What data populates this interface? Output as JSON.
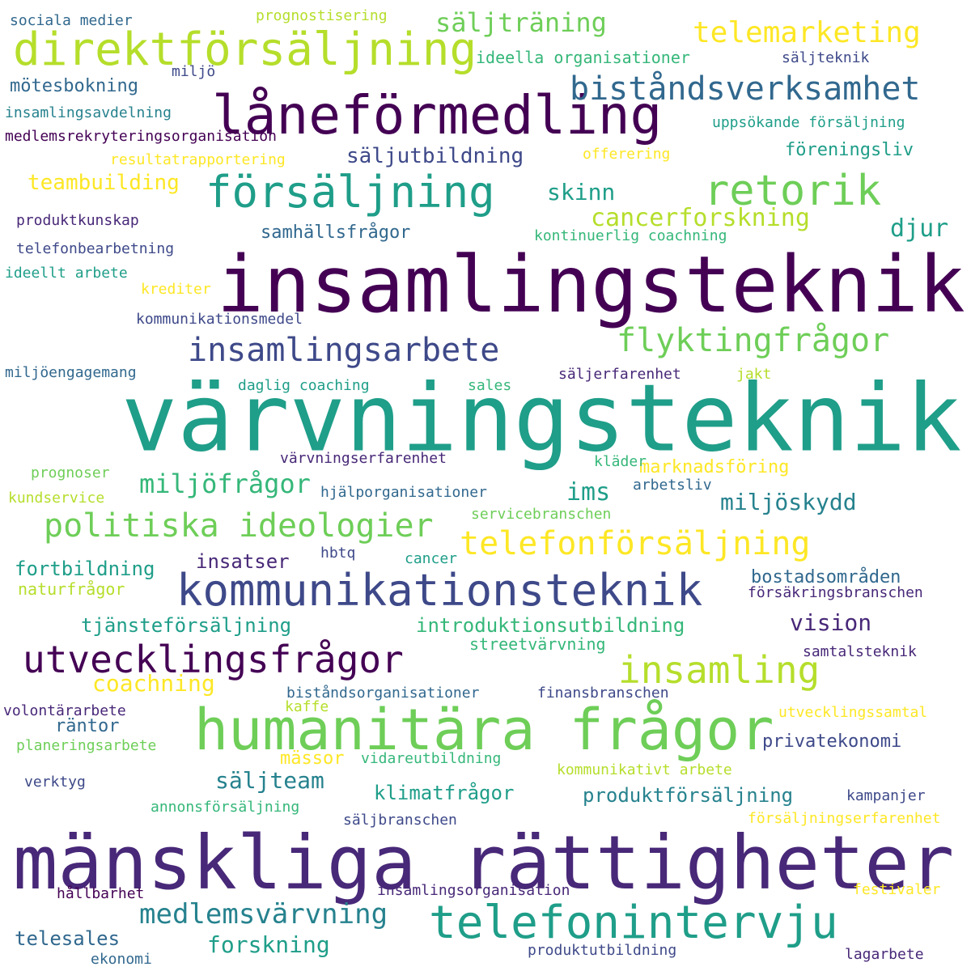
{
  "palette": {
    "c1": "#440154",
    "c2": "#482878",
    "c3": "#3e4989",
    "c4": "#31688e",
    "c5": "#26828e",
    "c6": "#1f9e89",
    "c7": "#35b779",
    "c8": "#6ece58",
    "c9": "#b5de2b",
    "c10": "#fde725"
  },
  "words": [
    {
      "text": "värvningsteknik",
      "color": "c6"
    },
    {
      "text": "insamlingsteknik",
      "color": "c1"
    },
    {
      "text": "mänskliga rättigheter",
      "color": "c2"
    },
    {
      "text": "humanitära frågor",
      "color": "c8"
    },
    {
      "text": "låneförmedling",
      "color": "c1"
    },
    {
      "text": "direktförsäljning",
      "color": "c9"
    },
    {
      "text": "telefonintervju",
      "color": "c6"
    },
    {
      "text": "kommunikationsteknik",
      "color": "c3"
    },
    {
      "text": "försäljning",
      "color": "c6"
    },
    {
      "text": "retorik",
      "color": "c8"
    },
    {
      "text": "utvecklingsfrågor",
      "color": "c1"
    },
    {
      "text": "insamling",
      "color": "c9"
    },
    {
      "text": "insamlingsarbete",
      "color": "c3"
    },
    {
      "text": "biståndsverksamhet",
      "color": "c4"
    },
    {
      "text": "flyktingfrågor",
      "color": "c8"
    },
    {
      "text": "politiska ideologier",
      "color": "c8"
    },
    {
      "text": "telefonförsäljning",
      "color": "c10"
    },
    {
      "text": "telemarketing",
      "color": "c10"
    },
    {
      "text": "medlemsvärvning",
      "color": "c5"
    },
    {
      "text": "miljöfrågor",
      "color": "c7"
    },
    {
      "text": "säljträning",
      "color": "c8"
    },
    {
      "text": "miljöskydd",
      "color": "c5"
    },
    {
      "text": "cancerforskning",
      "color": "c9"
    },
    {
      "text": "skinn",
      "color": "c6"
    },
    {
      "text": "djur",
      "color": "c6"
    },
    {
      "text": "ims",
      "color": "c6"
    },
    {
      "text": "vision",
      "color": "c2"
    },
    {
      "text": "coachning",
      "color": "c10"
    },
    {
      "text": "forskning",
      "color": "c6"
    },
    {
      "text": "säljteam",
      "color": "c5"
    },
    {
      "text": "telesales",
      "color": "c4"
    },
    {
      "text": "säljutbildning",
      "color": "c3"
    },
    {
      "text": "teambuilding",
      "color": "c10"
    },
    {
      "text": "introduktionsutbildning",
      "color": "c7"
    },
    {
      "text": "fortbildning",
      "color": "c6"
    },
    {
      "text": "insatser",
      "color": "c2"
    },
    {
      "text": "produktförsäljning",
      "color": "c5"
    },
    {
      "text": "klimatfrågor",
      "color": "c6"
    },
    {
      "text": "mötesbokning",
      "color": "c4"
    },
    {
      "text": "tjänsteförsäljning",
      "color": "c6"
    },
    {
      "text": "marknadsföring",
      "color": "c10"
    },
    {
      "text": "bostadsområden",
      "color": "c4"
    },
    {
      "text": "privatekonomi",
      "color": "c3"
    },
    {
      "text": "räntor",
      "color": "c4"
    },
    {
      "text": "föreningsliv",
      "color": "c6"
    },
    {
      "text": "samhällsfrågor",
      "color": "c4"
    },
    {
      "text": "mässor",
      "color": "c10"
    },
    {
      "text": "ideella organisationer",
      "color": "c7"
    },
    {
      "text": "naturfrågor",
      "color": "c9"
    },
    {
      "text": "streetvärvning",
      "color": "c7"
    },
    {
      "text": "uppsökande försäljning",
      "color": "c6"
    },
    {
      "text": "kontinuerlig coachning",
      "color": "c7"
    },
    {
      "text": "biståndsorganisationer",
      "color": "c4"
    },
    {
      "text": "vidareutbildning",
      "color": "c7"
    },
    {
      "text": "finansbranschen",
      "color": "c3"
    },
    {
      "text": "säljerfarenhet",
      "color": "c2"
    },
    {
      "text": "daglig coaching",
      "color": "c6"
    },
    {
      "text": "insamlingsorganisation",
      "color": "c2"
    },
    {
      "text": "sociala medier",
      "color": "c4"
    },
    {
      "text": "prognostisering",
      "color": "c9"
    },
    {
      "text": "säljteknik",
      "color": "c3"
    },
    {
      "text": "insamlingsavdelning",
      "color": "c5"
    },
    {
      "text": "medlemsrekryteringsorganisation",
      "color": "c1"
    },
    {
      "text": "resultatrapportering",
      "color": "c10"
    },
    {
      "text": "offerering",
      "color": "c10"
    },
    {
      "text": "produktkunskap",
      "color": "c2"
    },
    {
      "text": "telefonbearbetning",
      "color": "c3"
    },
    {
      "text": "ideellt arbete",
      "color": "c6"
    },
    {
      "text": "krediter",
      "color": "c10"
    },
    {
      "text": "kommunikationsmedel",
      "color": "c3"
    },
    {
      "text": "miljöengagemang",
      "color": "c4"
    },
    {
      "text": "jakt",
      "color": "c9"
    },
    {
      "text": "sales",
      "color": "c7"
    },
    {
      "text": "värvningserfarenhet",
      "color": "c2"
    },
    {
      "text": "kläder",
      "color": "c7"
    },
    {
      "text": "prognoser",
      "color": "c8"
    },
    {
      "text": "kundservice",
      "color": "c9"
    },
    {
      "text": "hjälporganisationer",
      "color": "c4"
    },
    {
      "text": "arbetsliv",
      "color": "c4"
    },
    {
      "text": "servicebranschen",
      "color": "c8"
    },
    {
      "text": "hbtq",
      "color": "c3"
    },
    {
      "text": "cancer",
      "color": "c6"
    },
    {
      "text": "försäkringsbranschen",
      "color": "c2"
    },
    {
      "text": "samtalsteknik",
      "color": "c2"
    },
    {
      "text": "volontärarbete",
      "color": "c2"
    },
    {
      "text": "kaffe",
      "color": "c9"
    },
    {
      "text": "utvecklingssamtal",
      "color": "c10"
    },
    {
      "text": "planeringsarbete",
      "color": "c8"
    },
    {
      "text": "kommunikativt arbete",
      "color": "c9"
    },
    {
      "text": "verktyg",
      "color": "c3"
    },
    {
      "text": "kampanjer",
      "color": "c3"
    },
    {
      "text": "annonsförsäljning",
      "color": "c7"
    },
    {
      "text": "säljbranschen",
      "color": "c3"
    },
    {
      "text": "försäljningserfarenhet",
      "color": "c10"
    },
    {
      "text": "hållbarhet",
      "color": "c1"
    },
    {
      "text": "festivaler",
      "color": "c10"
    },
    {
      "text": "ekonomi",
      "color": "c4"
    },
    {
      "text": "produktutbildning",
      "color": "c3"
    },
    {
      "text": "lagarbete",
      "color": "c2"
    },
    {
      "text": "miljö",
      "color": "c3"
    }
  ]
}
